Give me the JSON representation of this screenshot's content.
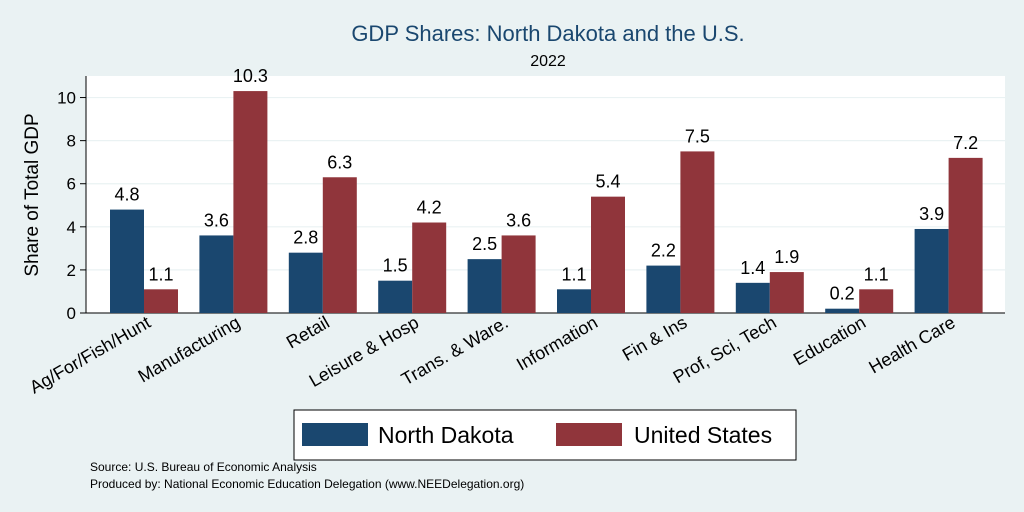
{
  "chart_data": {
    "type": "bar",
    "title": "GDP Shares: North Dakota and the U.S.",
    "subtitle": "2022",
    "ylabel": "Share of Total GDP",
    "ylim": [
      0,
      11
    ],
    "yticks": [
      0,
      2,
      4,
      6,
      8,
      10
    ],
    "grid": true,
    "legend_position": "bottom",
    "categories": [
      "Ag/For/Fish/Hunt",
      "Manufacturing",
      "Retail",
      "Leisure & Hosp",
      "Trans. & Ware.",
      "Information",
      "Fin & Ins",
      "Prof, Sci, Tech",
      "Education",
      "Health Care"
    ],
    "series": [
      {
        "name": "North Dakota",
        "color": "#1a476f",
        "values": [
          4.8,
          3.6,
          2.8,
          1.5,
          2.5,
          1.1,
          2.2,
          1.4,
          0.2,
          3.9
        ]
      },
      {
        "name": "United States",
        "color": "#90353b",
        "values": [
          1.1,
          10.3,
          6.3,
          4.2,
          3.6,
          5.4,
          7.5,
          1.9,
          1.1,
          7.2
        ]
      }
    ]
  },
  "notes": {
    "source": "Source: U.S. Bureau of Economic Analysis",
    "produced_by": "Produced by: National Economic Education Delegation (www.NEEDelegation.org)"
  },
  "colors": {
    "background": "#eaf2f3",
    "title": "#1a476f"
  }
}
